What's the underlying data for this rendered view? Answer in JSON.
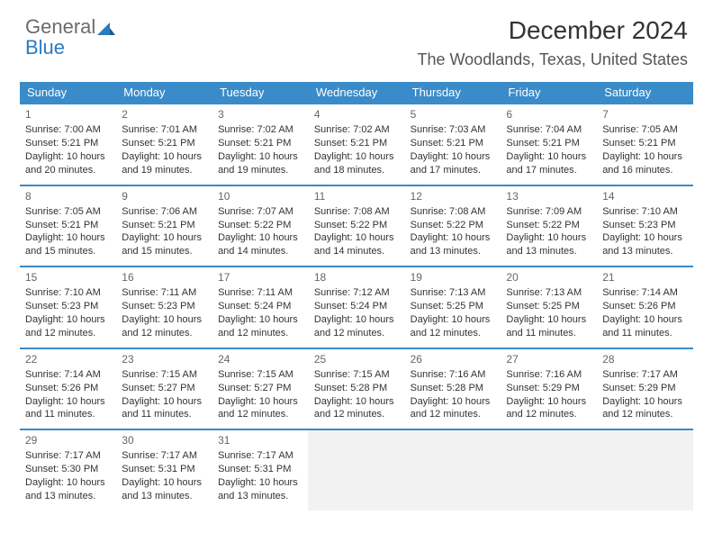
{
  "logo": {
    "word1": "General",
    "word2": "Blue"
  },
  "title": "December 2024",
  "location": "The Woodlands, Texas, United States",
  "colors": {
    "header_bg": "#3a8bc9",
    "header_text": "#ffffff",
    "row_border": "#3a8bc9",
    "empty_bg": "#f2f2f2",
    "logo_gray": "#6b6b6b",
    "logo_blue": "#2b7bbf"
  },
  "day_headers": [
    "Sunday",
    "Monday",
    "Tuesday",
    "Wednesday",
    "Thursday",
    "Friday",
    "Saturday"
  ],
  "weeks": [
    [
      {
        "day": "1",
        "sunrise": "Sunrise: 7:00 AM",
        "sunset": "Sunset: 5:21 PM",
        "daylight1": "Daylight: 10 hours",
        "daylight2": "and 20 minutes."
      },
      {
        "day": "2",
        "sunrise": "Sunrise: 7:01 AM",
        "sunset": "Sunset: 5:21 PM",
        "daylight1": "Daylight: 10 hours",
        "daylight2": "and 19 minutes."
      },
      {
        "day": "3",
        "sunrise": "Sunrise: 7:02 AM",
        "sunset": "Sunset: 5:21 PM",
        "daylight1": "Daylight: 10 hours",
        "daylight2": "and 19 minutes."
      },
      {
        "day": "4",
        "sunrise": "Sunrise: 7:02 AM",
        "sunset": "Sunset: 5:21 PM",
        "daylight1": "Daylight: 10 hours",
        "daylight2": "and 18 minutes."
      },
      {
        "day": "5",
        "sunrise": "Sunrise: 7:03 AM",
        "sunset": "Sunset: 5:21 PM",
        "daylight1": "Daylight: 10 hours",
        "daylight2": "and 17 minutes."
      },
      {
        "day": "6",
        "sunrise": "Sunrise: 7:04 AM",
        "sunset": "Sunset: 5:21 PM",
        "daylight1": "Daylight: 10 hours",
        "daylight2": "and 17 minutes."
      },
      {
        "day": "7",
        "sunrise": "Sunrise: 7:05 AM",
        "sunset": "Sunset: 5:21 PM",
        "daylight1": "Daylight: 10 hours",
        "daylight2": "and 16 minutes."
      }
    ],
    [
      {
        "day": "8",
        "sunrise": "Sunrise: 7:05 AM",
        "sunset": "Sunset: 5:21 PM",
        "daylight1": "Daylight: 10 hours",
        "daylight2": "and 15 minutes."
      },
      {
        "day": "9",
        "sunrise": "Sunrise: 7:06 AM",
        "sunset": "Sunset: 5:21 PM",
        "daylight1": "Daylight: 10 hours",
        "daylight2": "and 15 minutes."
      },
      {
        "day": "10",
        "sunrise": "Sunrise: 7:07 AM",
        "sunset": "Sunset: 5:22 PM",
        "daylight1": "Daylight: 10 hours",
        "daylight2": "and 14 minutes."
      },
      {
        "day": "11",
        "sunrise": "Sunrise: 7:08 AM",
        "sunset": "Sunset: 5:22 PM",
        "daylight1": "Daylight: 10 hours",
        "daylight2": "and 14 minutes."
      },
      {
        "day": "12",
        "sunrise": "Sunrise: 7:08 AM",
        "sunset": "Sunset: 5:22 PM",
        "daylight1": "Daylight: 10 hours",
        "daylight2": "and 13 minutes."
      },
      {
        "day": "13",
        "sunrise": "Sunrise: 7:09 AM",
        "sunset": "Sunset: 5:22 PM",
        "daylight1": "Daylight: 10 hours",
        "daylight2": "and 13 minutes."
      },
      {
        "day": "14",
        "sunrise": "Sunrise: 7:10 AM",
        "sunset": "Sunset: 5:23 PM",
        "daylight1": "Daylight: 10 hours",
        "daylight2": "and 13 minutes."
      }
    ],
    [
      {
        "day": "15",
        "sunrise": "Sunrise: 7:10 AM",
        "sunset": "Sunset: 5:23 PM",
        "daylight1": "Daylight: 10 hours",
        "daylight2": "and 12 minutes."
      },
      {
        "day": "16",
        "sunrise": "Sunrise: 7:11 AM",
        "sunset": "Sunset: 5:23 PM",
        "daylight1": "Daylight: 10 hours",
        "daylight2": "and 12 minutes."
      },
      {
        "day": "17",
        "sunrise": "Sunrise: 7:11 AM",
        "sunset": "Sunset: 5:24 PM",
        "daylight1": "Daylight: 10 hours",
        "daylight2": "and 12 minutes."
      },
      {
        "day": "18",
        "sunrise": "Sunrise: 7:12 AM",
        "sunset": "Sunset: 5:24 PM",
        "daylight1": "Daylight: 10 hours",
        "daylight2": "and 12 minutes."
      },
      {
        "day": "19",
        "sunrise": "Sunrise: 7:13 AM",
        "sunset": "Sunset: 5:25 PM",
        "daylight1": "Daylight: 10 hours",
        "daylight2": "and 12 minutes."
      },
      {
        "day": "20",
        "sunrise": "Sunrise: 7:13 AM",
        "sunset": "Sunset: 5:25 PM",
        "daylight1": "Daylight: 10 hours",
        "daylight2": "and 11 minutes."
      },
      {
        "day": "21",
        "sunrise": "Sunrise: 7:14 AM",
        "sunset": "Sunset: 5:26 PM",
        "daylight1": "Daylight: 10 hours",
        "daylight2": "and 11 minutes."
      }
    ],
    [
      {
        "day": "22",
        "sunrise": "Sunrise: 7:14 AM",
        "sunset": "Sunset: 5:26 PM",
        "daylight1": "Daylight: 10 hours",
        "daylight2": "and 11 minutes."
      },
      {
        "day": "23",
        "sunrise": "Sunrise: 7:15 AM",
        "sunset": "Sunset: 5:27 PM",
        "daylight1": "Daylight: 10 hours",
        "daylight2": "and 11 minutes."
      },
      {
        "day": "24",
        "sunrise": "Sunrise: 7:15 AM",
        "sunset": "Sunset: 5:27 PM",
        "daylight1": "Daylight: 10 hours",
        "daylight2": "and 12 minutes."
      },
      {
        "day": "25",
        "sunrise": "Sunrise: 7:15 AM",
        "sunset": "Sunset: 5:28 PM",
        "daylight1": "Daylight: 10 hours",
        "daylight2": "and 12 minutes."
      },
      {
        "day": "26",
        "sunrise": "Sunrise: 7:16 AM",
        "sunset": "Sunset: 5:28 PM",
        "daylight1": "Daylight: 10 hours",
        "daylight2": "and 12 minutes."
      },
      {
        "day": "27",
        "sunrise": "Sunrise: 7:16 AM",
        "sunset": "Sunset: 5:29 PM",
        "daylight1": "Daylight: 10 hours",
        "daylight2": "and 12 minutes."
      },
      {
        "day": "28",
        "sunrise": "Sunrise: 7:17 AM",
        "sunset": "Sunset: 5:29 PM",
        "daylight1": "Daylight: 10 hours",
        "daylight2": "and 12 minutes."
      }
    ],
    [
      {
        "day": "29",
        "sunrise": "Sunrise: 7:17 AM",
        "sunset": "Sunset: 5:30 PM",
        "daylight1": "Daylight: 10 hours",
        "daylight2": "and 13 minutes."
      },
      {
        "day": "30",
        "sunrise": "Sunrise: 7:17 AM",
        "sunset": "Sunset: 5:31 PM",
        "daylight1": "Daylight: 10 hours",
        "daylight2": "and 13 minutes."
      },
      {
        "day": "31",
        "sunrise": "Sunrise: 7:17 AM",
        "sunset": "Sunset: 5:31 PM",
        "daylight1": "Daylight: 10 hours",
        "daylight2": "and 13 minutes."
      },
      {
        "empty": true
      },
      {
        "empty": true
      },
      {
        "empty": true
      },
      {
        "empty": true
      }
    ]
  ]
}
